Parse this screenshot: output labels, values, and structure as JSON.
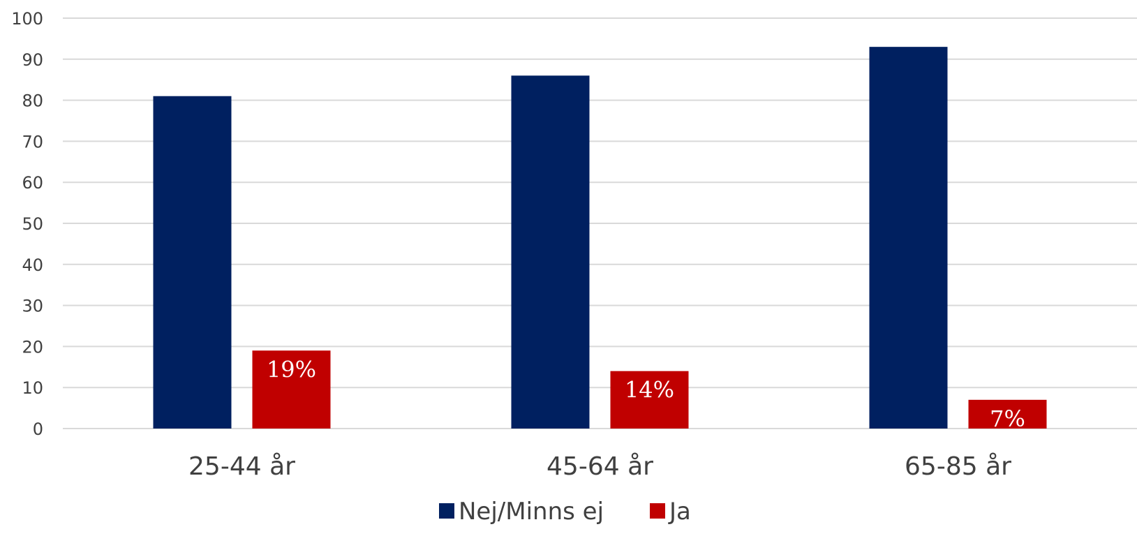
{
  "chart_data": {
    "type": "bar",
    "categories": [
      "25-44 år",
      "45-64 år",
      "65-85 år"
    ],
    "series": [
      {
        "name": "Nej/Minns ej",
        "color": "#002060",
        "values": [
          81,
          86,
          93
        ]
      },
      {
        "name": "Ja",
        "color": "#C00000",
        "values": [
          19,
          14,
          7
        ],
        "data_labels": [
          "19%",
          "14%",
          "7%"
        ]
      }
    ],
    "ylim": [
      0,
      100
    ],
    "yticks": [
      0,
      10,
      20,
      30,
      40,
      50,
      60,
      70,
      80,
      90,
      100
    ],
    "grid": true,
    "legend_position": "bottom"
  }
}
